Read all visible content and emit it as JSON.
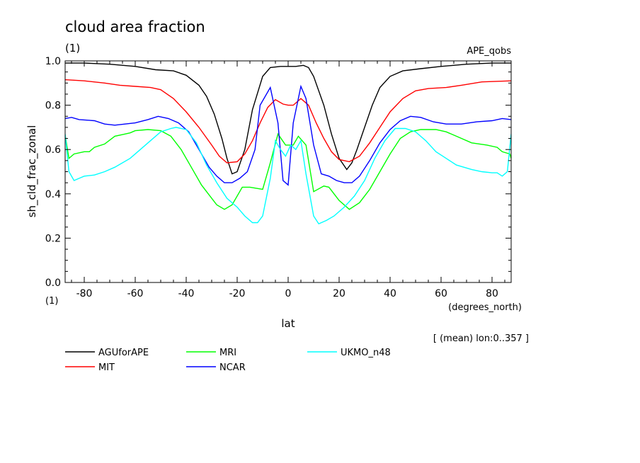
{
  "header": {
    "title": "cloud area fraction",
    "units": "(1)",
    "dataset": "APE_qobs"
  },
  "footer": {
    "mean_note": "[ (mean) lon:0..357 ]"
  },
  "chart_data": {
    "type": "line",
    "title": "cloud area fraction",
    "xlabel": "lat",
    "xunits": "(degrees_north)",
    "ylabel": "sh_cld_frac_zonal",
    "yunits": "(1)",
    "xlim": [
      -87.5,
      87.5
    ],
    "ylim": [
      0,
      1
    ],
    "xticks": [
      -80,
      -60,
      -40,
      -20,
      0,
      20,
      40,
      60,
      80
    ],
    "xtick_labels": [
      "-80",
      "-60",
      "-40",
      "-20",
      "0",
      "20",
      "40",
      "60",
      "80"
    ],
    "yticks": [
      0,
      0.2,
      0.4,
      0.6,
      0.8,
      1.0
    ],
    "ytick_labels": [
      "0.0",
      "0.2",
      "0.4",
      "0.6",
      "0.8",
      "1.0"
    ],
    "legend_position": "bottom",
    "series": [
      {
        "name": "AGUforAPE",
        "color": "#000000",
        "points": [
          [
            -87.5,
            0.99
          ],
          [
            -80,
            0.99
          ],
          [
            -70,
            0.985
          ],
          [
            -60,
            0.975
          ],
          [
            -52,
            0.96
          ],
          [
            -45,
            0.955
          ],
          [
            -40,
            0.935
          ],
          [
            -35,
            0.89
          ],
          [
            -32,
            0.84
          ],
          [
            -29,
            0.76
          ],
          [
            -26,
            0.65
          ],
          [
            -24,
            0.56
          ],
          [
            -22,
            0.49
          ],
          [
            -20,
            0.5
          ],
          [
            -17,
            0.6
          ],
          [
            -14,
            0.78
          ],
          [
            -10,
            0.93
          ],
          [
            -7,
            0.97
          ],
          [
            -3,
            0.975
          ],
          [
            0,
            0.975
          ],
          [
            3,
            0.975
          ],
          [
            6,
            0.98
          ],
          [
            8,
            0.97
          ],
          [
            10,
            0.93
          ],
          [
            14,
            0.8
          ],
          [
            17,
            0.67
          ],
          [
            20,
            0.56
          ],
          [
            23,
            0.51
          ],
          [
            25,
            0.54
          ],
          [
            27,
            0.6
          ],
          [
            30,
            0.7
          ],
          [
            33,
            0.8
          ],
          [
            36,
            0.88
          ],
          [
            40,
            0.93
          ],
          [
            45,
            0.955
          ],
          [
            52,
            0.965
          ],
          [
            60,
            0.975
          ],
          [
            70,
            0.985
          ],
          [
            80,
            0.99
          ],
          [
            87.5,
            0.99
          ]
        ]
      },
      {
        "name": "MIT",
        "color": "#ff0000",
        "points": [
          [
            -87.5,
            0.915
          ],
          [
            -80,
            0.91
          ],
          [
            -72,
            0.9
          ],
          [
            -66,
            0.89
          ],
          [
            -60,
            0.885
          ],
          [
            -54,
            0.88
          ],
          [
            -50,
            0.87
          ],
          [
            -45,
            0.83
          ],
          [
            -40,
            0.77
          ],
          [
            -35,
            0.7
          ],
          [
            -30,
            0.62
          ],
          [
            -27,
            0.57
          ],
          [
            -24,
            0.54
          ],
          [
            -20,
            0.545
          ],
          [
            -17,
            0.58
          ],
          [
            -14,
            0.64
          ],
          [
            -11,
            0.72
          ],
          [
            -8,
            0.79
          ],
          [
            -5,
            0.825
          ],
          [
            -2,
            0.805
          ],
          [
            0,
            0.8
          ],
          [
            2,
            0.8
          ],
          [
            5,
            0.83
          ],
          [
            8,
            0.8
          ],
          [
            11,
            0.72
          ],
          [
            14,
            0.65
          ],
          [
            17,
            0.59
          ],
          [
            20,
            0.555
          ],
          [
            24,
            0.545
          ],
          [
            28,
            0.57
          ],
          [
            32,
            0.63
          ],
          [
            36,
            0.7
          ],
          [
            40,
            0.77
          ],
          [
            45,
            0.83
          ],
          [
            50,
            0.865
          ],
          [
            55,
            0.875
          ],
          [
            62,
            0.88
          ],
          [
            68,
            0.89
          ],
          [
            76,
            0.905
          ],
          [
            87.5,
            0.91
          ]
        ]
      },
      {
        "name": "MRI",
        "color": "#00ff00",
        "points": [
          [
            -87.5,
            0.665
          ],
          [
            -86,
            0.56
          ],
          [
            -84,
            0.58
          ],
          [
            -80,
            0.59
          ],
          [
            -78,
            0.59
          ],
          [
            -76,
            0.61
          ],
          [
            -72,
            0.625
          ],
          [
            -68,
            0.66
          ],
          [
            -64,
            0.67
          ],
          [
            -62,
            0.675
          ],
          [
            -60,
            0.685
          ],
          [
            -55,
            0.69
          ],
          [
            -50,
            0.685
          ],
          [
            -46,
            0.66
          ],
          [
            -42,
            0.6
          ],
          [
            -38,
            0.52
          ],
          [
            -34,
            0.44
          ],
          [
            -30,
            0.38
          ],
          [
            -28,
            0.35
          ],
          [
            -25,
            0.33
          ],
          [
            -22,
            0.35
          ],
          [
            -18,
            0.43
          ],
          [
            -15,
            0.43
          ],
          [
            -10,
            0.42
          ],
          [
            -7,
            0.54
          ],
          [
            -4,
            0.67
          ],
          [
            -1,
            0.62
          ],
          [
            2,
            0.62
          ],
          [
            4,
            0.66
          ],
          [
            7,
            0.62
          ],
          [
            10,
            0.41
          ],
          [
            14,
            0.435
          ],
          [
            16,
            0.43
          ],
          [
            20,
            0.37
          ],
          [
            24,
            0.33
          ],
          [
            28,
            0.36
          ],
          [
            32,
            0.42
          ],
          [
            36,
            0.5
          ],
          [
            40,
            0.58
          ],
          [
            44,
            0.65
          ],
          [
            48,
            0.68
          ],
          [
            52,
            0.69
          ],
          [
            58,
            0.69
          ],
          [
            62,
            0.68
          ],
          [
            66,
            0.66
          ],
          [
            72,
            0.63
          ],
          [
            78,
            0.62
          ],
          [
            82,
            0.61
          ],
          [
            84,
            0.59
          ],
          [
            87,
            0.58
          ],
          [
            87.5,
            0.56
          ]
        ]
      },
      {
        "name": "NCAR",
        "color": "#0000ff",
        "points": [
          [
            -87.5,
            0.74
          ],
          [
            -85,
            0.745
          ],
          [
            -82,
            0.735
          ],
          [
            -76,
            0.73
          ],
          [
            -72,
            0.715
          ],
          [
            -68,
            0.71
          ],
          [
            -64,
            0.715
          ],
          [
            -60,
            0.72
          ],
          [
            -55,
            0.735
          ],
          [
            -51,
            0.75
          ],
          [
            -47,
            0.74
          ],
          [
            -43,
            0.72
          ],
          [
            -39,
            0.68
          ],
          [
            -35,
            0.6
          ],
          [
            -31,
            0.52
          ],
          [
            -28,
            0.48
          ],
          [
            -25,
            0.45
          ],
          [
            -22,
            0.45
          ],
          [
            -19,
            0.47
          ],
          [
            -16,
            0.5
          ],
          [
            -13,
            0.6
          ],
          [
            -11,
            0.8
          ],
          [
            -7,
            0.88
          ],
          [
            -4,
            0.72
          ],
          [
            -2,
            0.46
          ],
          [
            0,
            0.44
          ],
          [
            2,
            0.72
          ],
          [
            5,
            0.885
          ],
          [
            7,
            0.83
          ],
          [
            10,
            0.62
          ],
          [
            13,
            0.49
          ],
          [
            16,
            0.48
          ],
          [
            19,
            0.46
          ],
          [
            22,
            0.45
          ],
          [
            25,
            0.45
          ],
          [
            28,
            0.48
          ],
          [
            32,
            0.55
          ],
          [
            36,
            0.63
          ],
          [
            40,
            0.69
          ],
          [
            44,
            0.73
          ],
          [
            48,
            0.75
          ],
          [
            52,
            0.745
          ],
          [
            57,
            0.725
          ],
          [
            62,
            0.715
          ],
          [
            68,
            0.715
          ],
          [
            74,
            0.725
          ],
          [
            80,
            0.73
          ],
          [
            84,
            0.74
          ],
          [
            87.5,
            0.735
          ]
        ]
      },
      {
        "name": "UKMO_n48",
        "color": "#00ffff",
        "points": [
          [
            -87.5,
            0.67
          ],
          [
            -86,
            0.5
          ],
          [
            -84,
            0.46
          ],
          [
            -82,
            0.47
          ],
          [
            -80,
            0.48
          ],
          [
            -76,
            0.485
          ],
          [
            -72,
            0.5
          ],
          [
            -68,
            0.52
          ],
          [
            -62,
            0.56
          ],
          [
            -58,
            0.6
          ],
          [
            -54,
            0.64
          ],
          [
            -50,
            0.68
          ],
          [
            -46,
            0.695
          ],
          [
            -44,
            0.7
          ],
          [
            -40,
            0.69
          ],
          [
            -36,
            0.63
          ],
          [
            -32,
            0.53
          ],
          [
            -28,
            0.45
          ],
          [
            -24,
            0.38
          ],
          [
            -20,
            0.34
          ],
          [
            -17,
            0.3
          ],
          [
            -14,
            0.27
          ],
          [
            -12,
            0.27
          ],
          [
            -10,
            0.3
          ],
          [
            -7,
            0.47
          ],
          [
            -5,
            0.64
          ],
          [
            -3,
            0.6
          ],
          [
            -1,
            0.57
          ],
          [
            1,
            0.62
          ],
          [
            3,
            0.6
          ],
          [
            5,
            0.64
          ],
          [
            7,
            0.49
          ],
          [
            10,
            0.3
          ],
          [
            12,
            0.265
          ],
          [
            15,
            0.28
          ],
          [
            18,
            0.3
          ],
          [
            22,
            0.34
          ],
          [
            26,
            0.39
          ],
          [
            30,
            0.46
          ],
          [
            34,
            0.56
          ],
          [
            38,
            0.64
          ],
          [
            42,
            0.695
          ],
          [
            46,
            0.695
          ],
          [
            50,
            0.68
          ],
          [
            54,
            0.64
          ],
          [
            58,
            0.59
          ],
          [
            62,
            0.56
          ],
          [
            66,
            0.53
          ],
          [
            72,
            0.51
          ],
          [
            76,
            0.5
          ],
          [
            80,
            0.495
          ],
          [
            82,
            0.495
          ],
          [
            84,
            0.48
          ],
          [
            86,
            0.5
          ],
          [
            87.5,
            0.67
          ]
        ]
      }
    ]
  }
}
